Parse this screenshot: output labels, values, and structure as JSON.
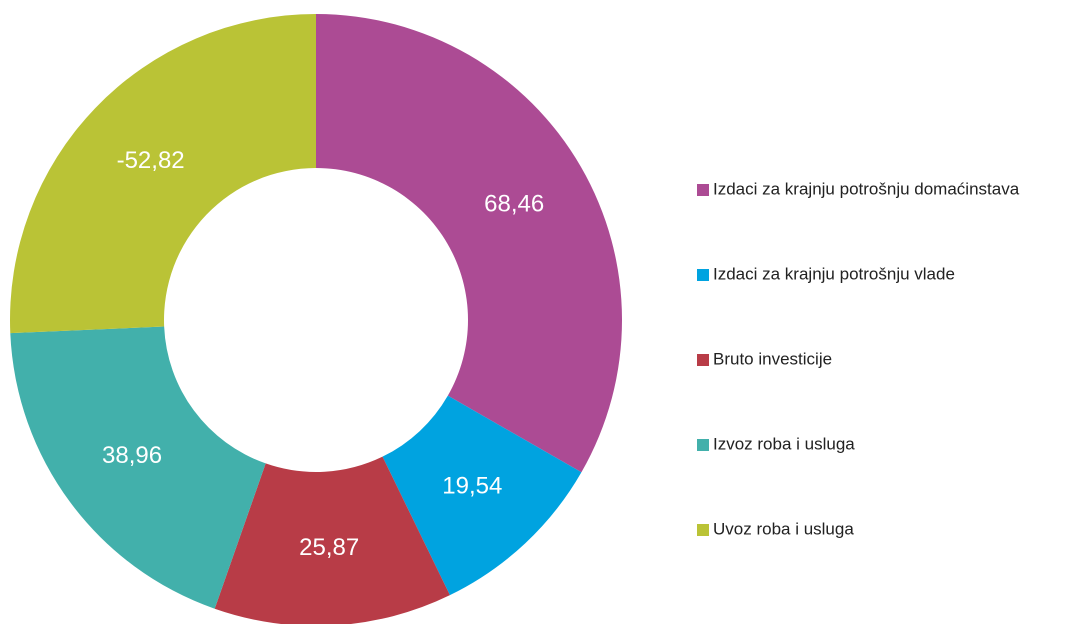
{
  "chart_data": {
    "type": "donut",
    "categories": [
      "Izdaci za krajnju potrošnju domaćinstava",
      "Izdaci za krajnju potrošnju vlade",
      "Bruto investicije",
      "Izvoz roba i usluga",
      "Uvoz roba i usluga"
    ],
    "values": [
      68.46,
      19.54,
      25.87,
      38.96,
      -52.82
    ],
    "value_labels": [
      "68,46",
      "19,54",
      "25,87",
      "38,96",
      "-52,82"
    ],
    "colors": [
      "#ac4b94",
      "#00a3e0",
      "#b83c47",
      "#42b0ab",
      "#bac336"
    ],
    "legend": "right"
  }
}
